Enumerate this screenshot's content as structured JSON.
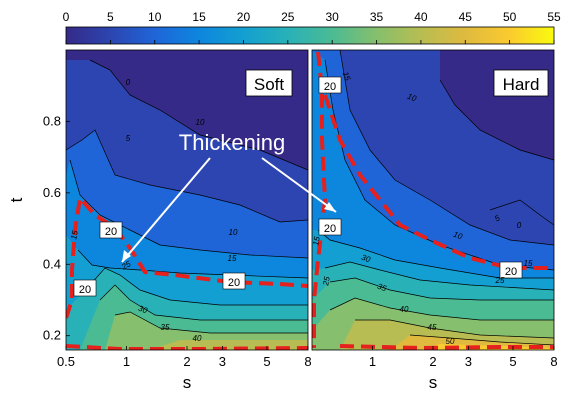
{
  "chart_data": [
    {
      "type": "heatmap",
      "subtype": "filled-contour",
      "panel_label": "Soft",
      "xlabel": "s",
      "ylabel": "t",
      "x_ticks": [
        "0.5",
        "1",
        "2",
        "3",
        "5",
        "8"
      ],
      "y_ticks": [
        "0.2",
        "0.4",
        "0.6",
        "0.8"
      ],
      "x_range": [
        0.5,
        8
      ],
      "y_range": [
        0.16,
        1.0
      ],
      "contour_labels": [
        "0",
        "5",
        "10",
        "10",
        "15",
        "15",
        "20",
        "20",
        "20",
        "25",
        "30",
        "35",
        "40"
      ],
      "highlighted_contour": 20,
      "annotation": "Thickening"
    },
    {
      "type": "heatmap",
      "subtype": "filled-contour",
      "panel_label": "Hard",
      "xlabel": "s",
      "ylabel": "",
      "x_ticks": [
        "1",
        "2",
        "3",
        "5",
        "8"
      ],
      "x_range": [
        0.5,
        8
      ],
      "y_range": [
        0.16,
        1.0
      ],
      "contour_labels": [
        "15",
        "20",
        "10",
        "5",
        "0",
        "10",
        "15",
        "15",
        "20",
        "20",
        "25",
        "25",
        "30",
        "35",
        "40",
        "45",
        "50"
      ],
      "highlighted_contour": 20
    }
  ],
  "colorbar": {
    "ticks": [
      "0",
      "5",
      "10",
      "15",
      "20",
      "25",
      "30",
      "35",
      "40",
      "45",
      "50",
      "55"
    ],
    "range": [
      0,
      55
    ],
    "colormap": "parula",
    "stops": [
      "#352a87",
      "#2c45b0",
      "#1f65d8",
      "#0d86de",
      "#139fd1",
      "#29b1b8",
      "#4bbb93",
      "#86bf6d",
      "#b7bd52",
      "#dfba3f",
      "#fbca2f",
      "#f9fb0e"
    ]
  },
  "annotation_text": "Thickening",
  "panel_labels": {
    "left": "Soft",
    "right": "Hard"
  },
  "axis_labels": {
    "x_left": "s",
    "x_right": "s",
    "y": "t"
  }
}
